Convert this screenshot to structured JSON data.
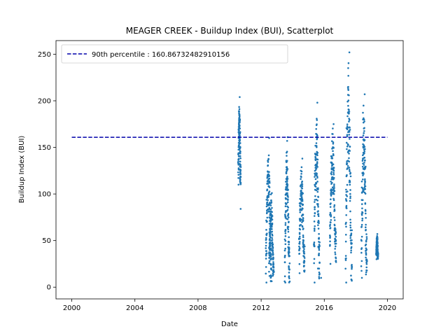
{
  "chart_data": {
    "type": "scatter",
    "title": "MEAGER CREEK - Buildup Index (BUI), Scatterplot",
    "xlabel": "Date",
    "ylabel": "Buildup Index (BUI)",
    "xlim": [
      1999.1,
      2001.1
    ],
    "xlim_years": [
      1999.0,
      2021.0
    ],
    "ylim": [
      -12.6,
      264.6
    ],
    "x_ticks": [
      2000,
      2004,
      2008,
      2012,
      2016,
      2020
    ],
    "x_tick_labels": [
      "2000",
      "2004",
      "2008",
      "2012",
      "2016",
      "2020"
    ],
    "y_ticks": [
      0,
      50,
      100,
      150,
      200,
      250
    ],
    "y_tick_labels": [
      "0",
      "50",
      "100",
      "150",
      "200",
      "250"
    ],
    "grid": false,
    "legend_placement": "top-left",
    "reference_line": {
      "label": "90th percentile : 160.86732482910156",
      "y": 160.86732482910156,
      "x_range": [
        2000,
        2020
      ],
      "color": "#0000aa",
      "style": "dashed"
    },
    "series": [
      {
        "color": "#1f77b4",
        "seasons": [
          {
            "x_start": 2010.55,
            "x_end": 2010.7,
            "y_min": 110,
            "y_max": 204
          },
          {
            "x_start": 2012.5,
            "x_end": 2012.8,
            "y_min": 12,
            "y_max": 101
          },
          {
            "x_start": 2012.3,
            "x_end": 2012.65,
            "y_min": 5,
            "y_max": 160
          },
          {
            "x_start": 2013.5,
            "x_end": 2013.8,
            "y_min": 5,
            "y_max": 161
          },
          {
            "x_start": 2014.4,
            "x_end": 2014.75,
            "y_min": 15,
            "y_max": 138
          },
          {
            "x_start": 2015.35,
            "x_end": 2015.7,
            "y_min": 5,
            "y_max": 198
          },
          {
            "x_start": 2016.35,
            "x_end": 2016.75,
            "y_min": 25,
            "y_max": 175
          },
          {
            "x_start": 2017.35,
            "x_end": 2017.75,
            "y_min": 5,
            "y_max": 252
          },
          {
            "x_start": 2018.35,
            "x_end": 2018.7,
            "y_min": 10,
            "y_max": 207
          },
          {
            "x_start": 2019.3,
            "x_end": 2019.4,
            "y_min": 30,
            "y_max": 57
          }
        ],
        "isolated_points": [
          {
            "x": 2010.7,
            "y": 84
          },
          {
            "x": 2015.65,
            "y": 52
          },
          {
            "x": 2015.6,
            "y": 20
          },
          {
            "x": 2015.8,
            "y": 10
          }
        ]
      }
    ]
  }
}
